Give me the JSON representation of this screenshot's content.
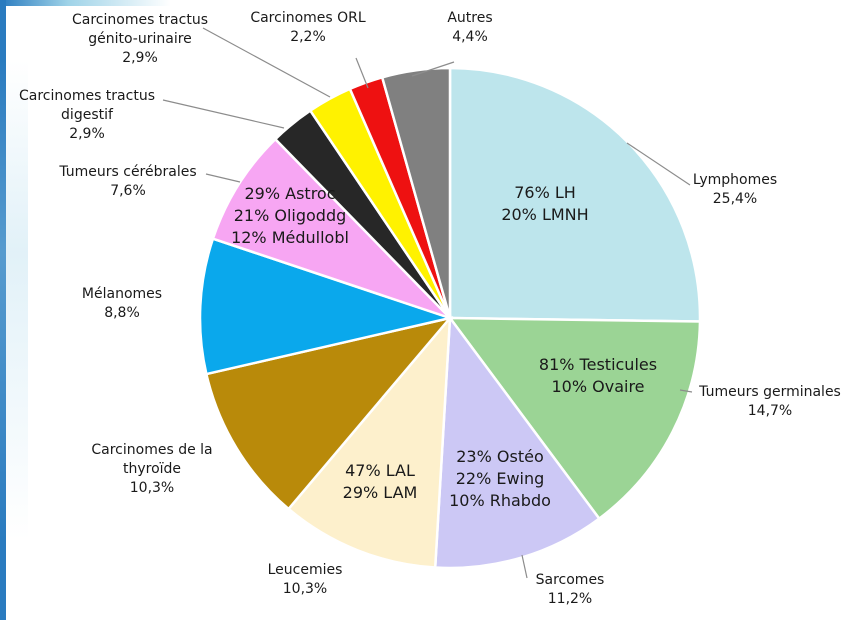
{
  "chart_data": {
    "type": "pie",
    "title": "",
    "colors": {
      "lymphomes": "#bde5ec",
      "germinales": "#9bd495",
      "sarcomes": "#ccc8f5",
      "leucemies": "#fdf0cc",
      "thyroide": "#b98a0a",
      "melanomes": "#0aa8ec",
      "cerebrales": "#f7a6f3",
      "digestif": "#272727",
      "genito": "#fff200",
      "orl": "#ee1111",
      "autres": "#808080",
      "border": "#ffffff"
    },
    "slices": [
      {
        "key": "lymphomes",
        "name": "Lymphomes",
        "pct_label": "25,4%",
        "value": 25.4,
        "breakdown": [
          "76% LH",
          "20% LMNH"
        ]
      },
      {
        "key": "germinales",
        "name": "Tumeurs germinales",
        "pct_label": "14,7%",
        "value": 14.7,
        "breakdown": [
          "81% Testicules",
          "10% Ovaire"
        ]
      },
      {
        "key": "sarcomes",
        "name": "Sarcomes",
        "pct_label": "11,2%",
        "value": 11.2,
        "breakdown": [
          "23% Ostéo",
          "22% Ewing",
          "10% Rhabdo"
        ]
      },
      {
        "key": "leucemies",
        "name": "Leucemies",
        "pct_label": "10,3%",
        "value": 10.3,
        "breakdown": [
          "47% LAL",
          "29% LAM"
        ]
      },
      {
        "key": "thyroide",
        "name": "Carcinomes de la thyroïde",
        "name_lines": [
          "Carcinomes de la",
          "thyroïde"
        ],
        "pct_label": "10,3%",
        "value": 10.3,
        "breakdown": []
      },
      {
        "key": "melanomes",
        "name": "Mélanomes",
        "pct_label": "8,8%",
        "value": 8.8,
        "breakdown": []
      },
      {
        "key": "cerebrales",
        "name": "Tumeurs cérébrales",
        "pct_label": "7,6%",
        "value": 7.6,
        "breakdown": [
          "29% Astroc",
          "21% Oligoddg",
          "12% Médullobl"
        ]
      },
      {
        "key": "digestif",
        "name": "Carcinomes tractus digestif",
        "name_lines": [
          "Carcinomes tractus",
          "digestif"
        ],
        "pct_label": "2,9%",
        "value": 2.9,
        "breakdown": []
      },
      {
        "key": "genito",
        "name": "Carcinomes tractus génito-urinaire",
        "name_lines": [
          "Carcinomes tractus",
          "génito-urinaire"
        ],
        "pct_label": "2,9%",
        "value": 2.9,
        "breakdown": []
      },
      {
        "key": "orl",
        "name": "Carcinomes ORL",
        "pct_label": "2,2%",
        "value": 2.2,
        "breakdown": []
      },
      {
        "key": "autres",
        "name": "Autres",
        "pct_label": "4,4%",
        "value": 4.4,
        "breakdown": []
      }
    ]
  }
}
